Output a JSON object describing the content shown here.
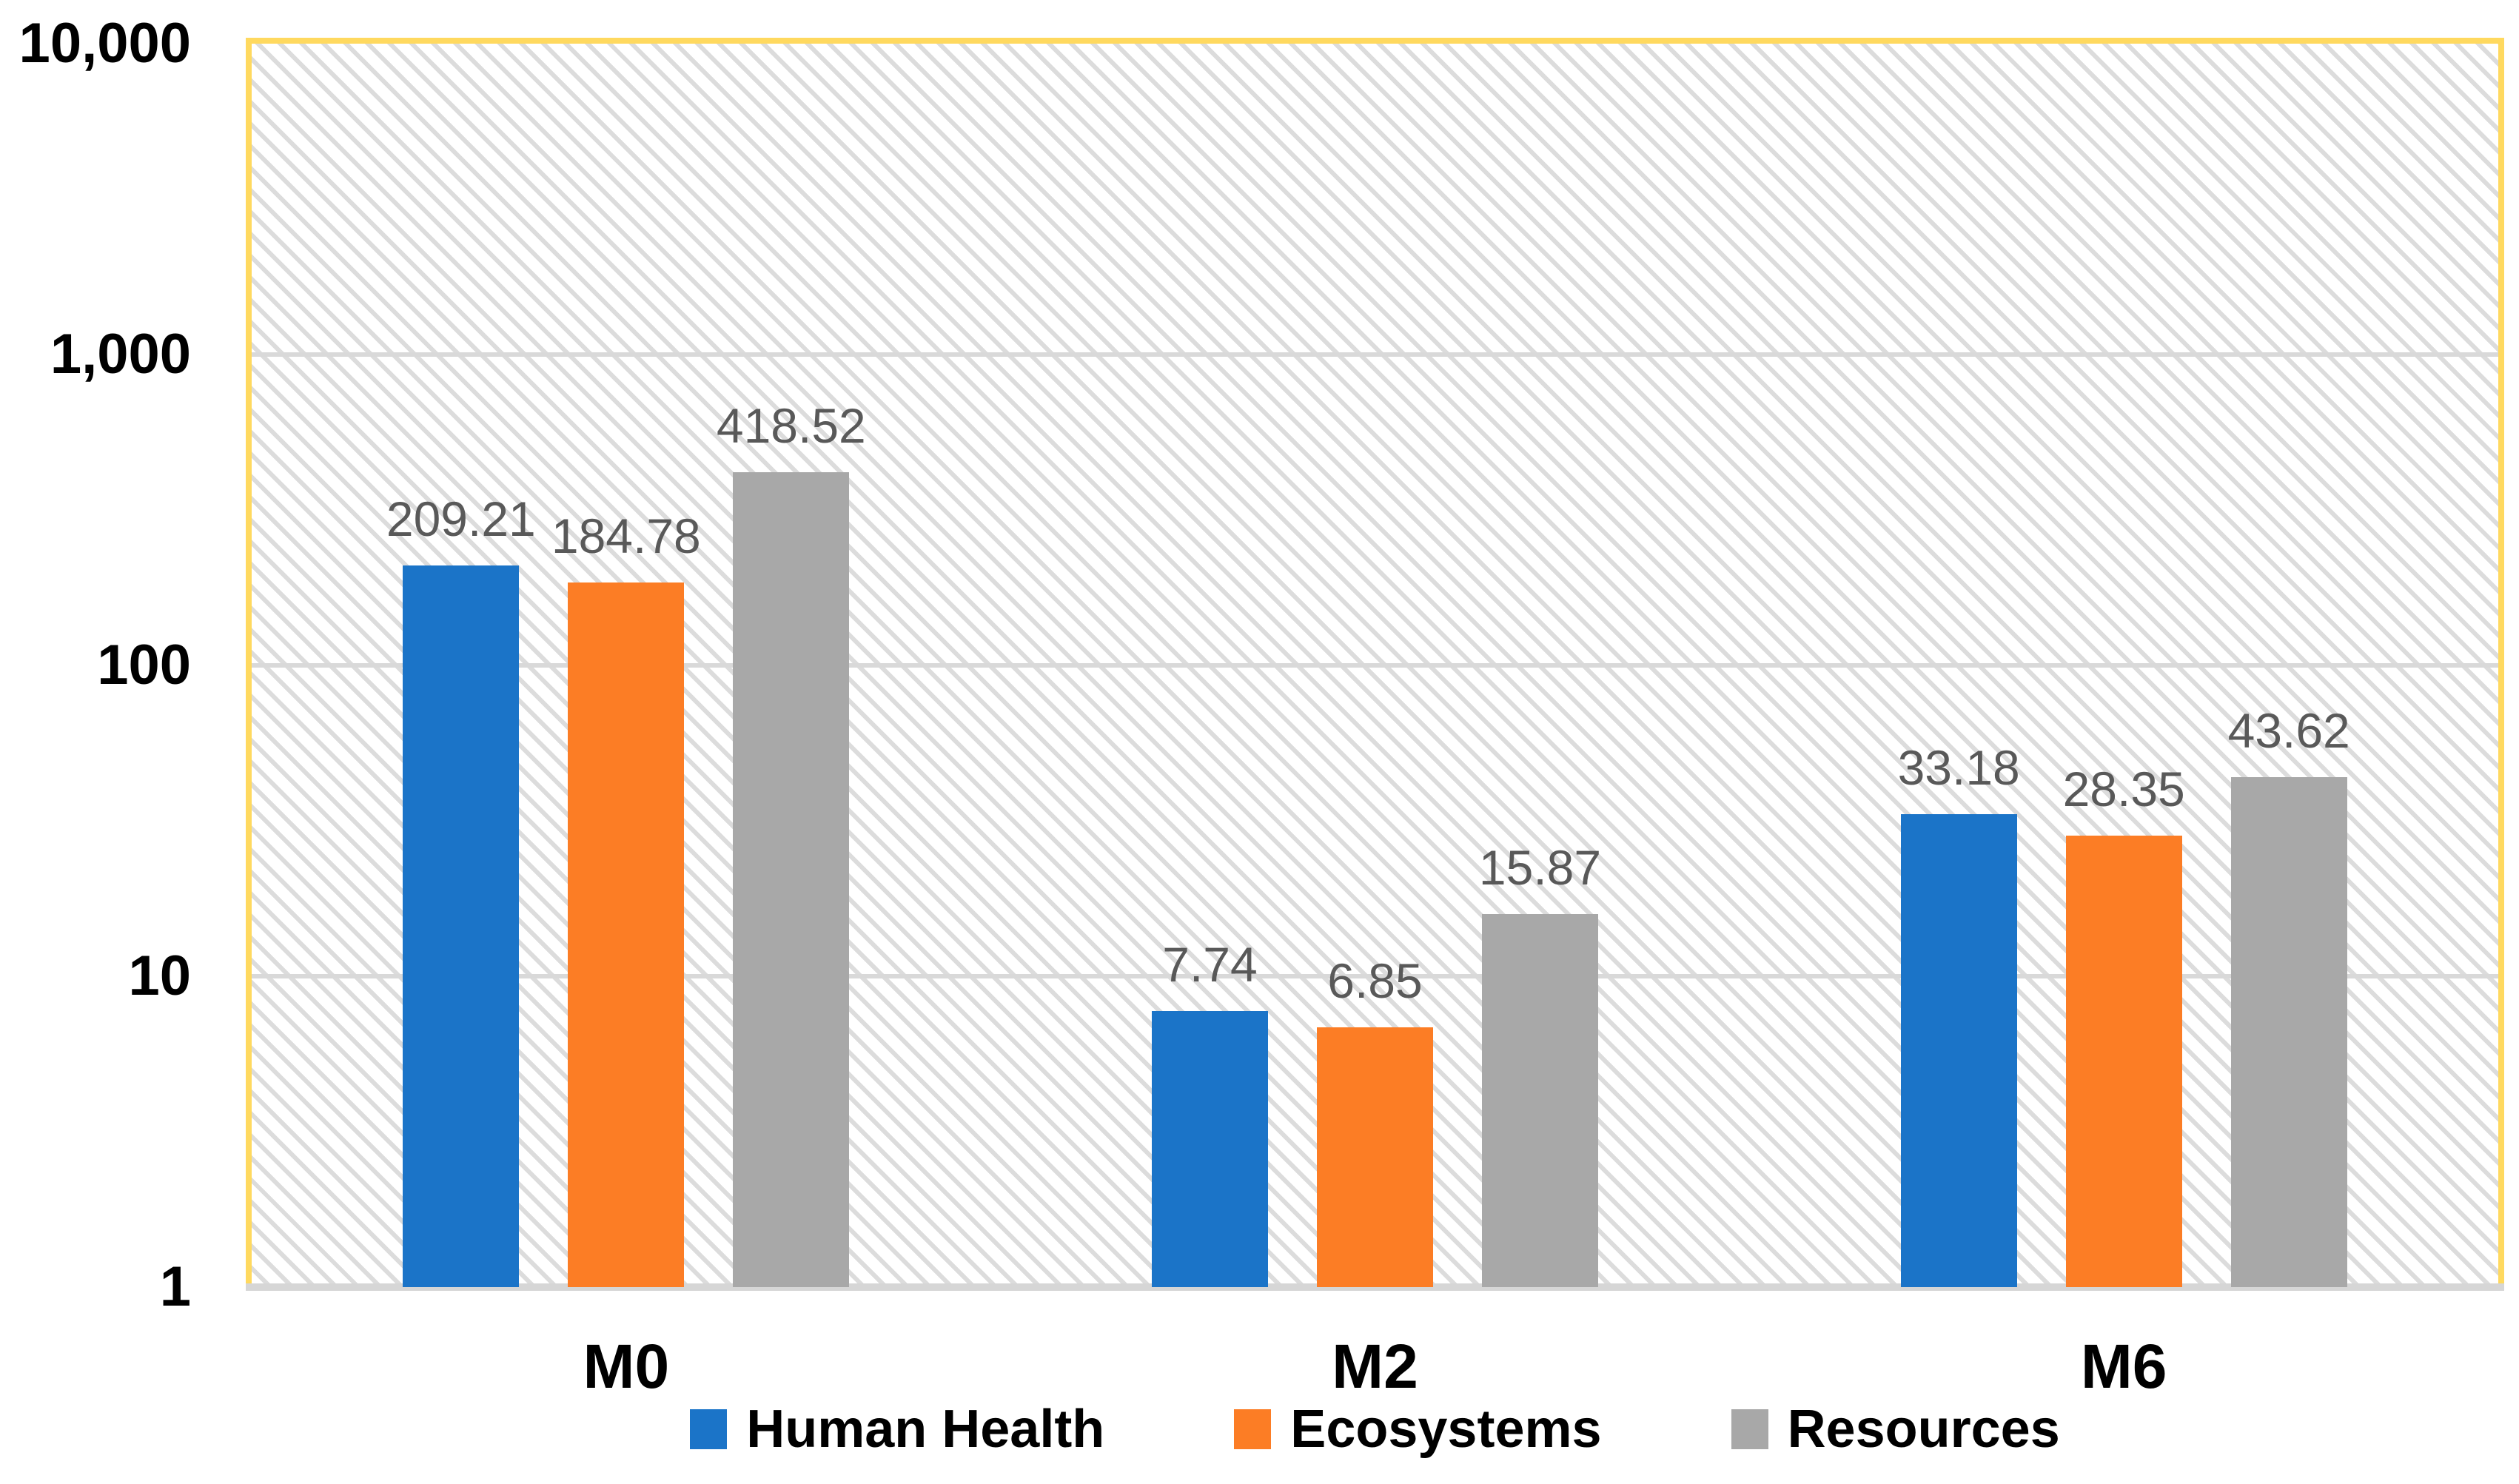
{
  "chart_data": {
    "type": "bar",
    "title": "",
    "categories": [
      "M0",
      "M2",
      "M6"
    ],
    "series": [
      {
        "name": "Human Health",
        "color": "#1B74C8",
        "values": [
          209.21,
          7.74,
          33.18
        ],
        "labels": [
          "209.21",
          "7.74",
          "33.18"
        ]
      },
      {
        "name": "Ecosystems",
        "color": "#FC7D25",
        "values": [
          184.78,
          6.85,
          28.35
        ],
        "labels": [
          "184.78",
          "6.85",
          "28.35"
        ]
      },
      {
        "name": "Resources",
        "color": "#A8A8A8",
        "values": [
          418.52,
          15.87,
          43.62
        ],
        "labels": [
          "418.52",
          "15.87",
          "43.62"
        ]
      }
    ],
    "y_axis": {
      "scale": "log",
      "min": 1,
      "max": 10000,
      "ticks": [
        "1",
        "10",
        "100",
        "1,000",
        "10,000"
      ]
    },
    "grid": true,
    "legend_position": "bottom",
    "colors": {
      "plot_border": "#FFD95F",
      "gridline": "#D9D9D9",
      "data_label": "#595959",
      "axis_text": "#000000"
    }
  }
}
